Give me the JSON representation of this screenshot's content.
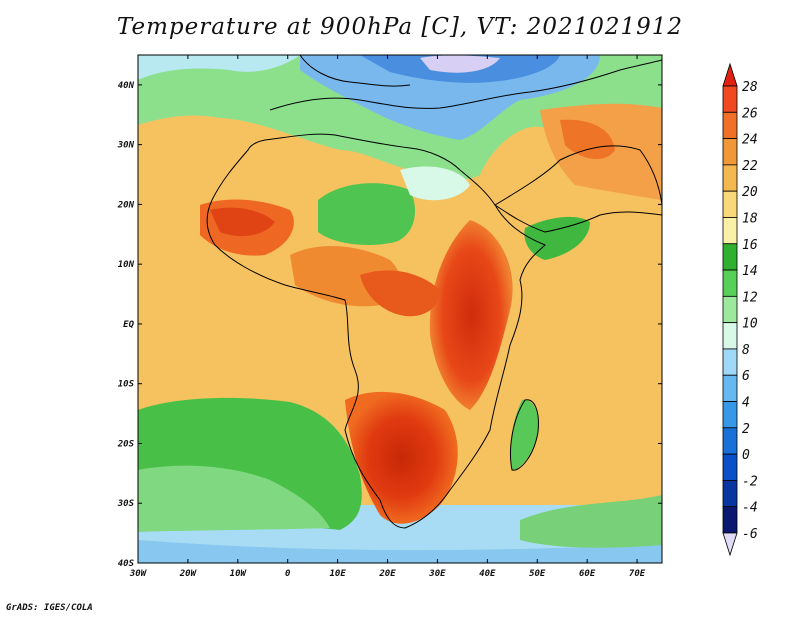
{
  "title": "Temperature at 900hPa [C], VT: 2021021912",
  "footer": "GrADS: IGES/COLA",
  "map": {
    "lon_ticks": [
      "30W",
      "20W",
      "10W",
      "0",
      "10E",
      "20E",
      "30E",
      "40E",
      "50E",
      "60E",
      "70E"
    ],
    "lat_ticks": [
      "40N",
      "30N",
      "20N",
      "10N",
      "EQ",
      "10S",
      "20S",
      "30S",
      "40S"
    ],
    "lon_range": [
      -30,
      75
    ],
    "lat_range": [
      -40,
      45
    ]
  },
  "colorbar": {
    "labels": [
      "28",
      "26",
      "24",
      "22",
      "20",
      "18",
      "16",
      "14",
      "12",
      "10",
      "8",
      "6",
      "4",
      "2",
      "0",
      "-2",
      "-4",
      "-6"
    ],
    "colors": [
      "#e02010",
      "#f04820",
      "#f07028",
      "#f09838",
      "#f5b850",
      "#f8d878",
      "#faf0a8",
      "#30b030",
      "#58d058",
      "#9ce89c",
      "#d8f8e8",
      "#a0d8f8",
      "#68b8f0",
      "#3898e8",
      "#1870d8",
      "#0a4ec8",
      "#0836a0",
      "#0a1870"
    ]
  }
}
